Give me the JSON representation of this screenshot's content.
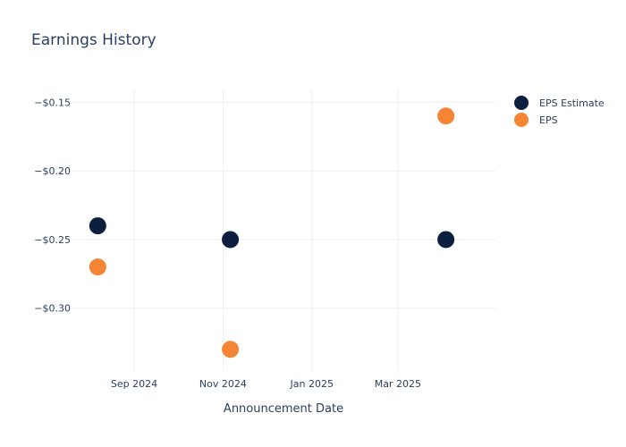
{
  "chart_data": {
    "type": "scatter",
    "title": "Earnings History",
    "xlabel": "Announcement Date",
    "ylabel": "",
    "x_ticks": [
      {
        "date": "2024-09-01",
        "label": "Sep 2024"
      },
      {
        "date": "2024-11-01",
        "label": "Nov 2024"
      },
      {
        "date": "2025-01-01",
        "label": "Jan 2025"
      },
      {
        "date": "2025-03-01",
        "label": "Mar 2025"
      }
    ],
    "y_ticks": [
      {
        "value": -0.15,
        "label": "−$0.15"
      },
      {
        "value": -0.2,
        "label": "−$0.20"
      },
      {
        "value": -0.25,
        "label": "−$0.25"
      },
      {
        "value": -0.3,
        "label": "−$0.30"
      }
    ],
    "xlim": [
      "2024-07-20",
      "2025-05-07"
    ],
    "ylim": [
      -0.3458,
      -0.1406
    ],
    "grid": true,
    "legend_position": "top-right",
    "series": [
      {
        "name": "EPS Estimate",
        "color": "#0d1f3f",
        "points": [
          {
            "x": "2024-08-07",
            "y": -0.24
          },
          {
            "x": "2024-11-06",
            "y": -0.25
          },
          {
            "x": "2025-04-03",
            "y": -0.25
          }
        ]
      },
      {
        "name": "EPS",
        "color": "#f58535",
        "points": [
          {
            "x": "2024-08-07",
            "y": -0.27
          },
          {
            "x": "2024-11-06",
            "y": -0.33
          },
          {
            "x": "2025-04-03",
            "y": -0.16
          }
        ]
      }
    ]
  }
}
